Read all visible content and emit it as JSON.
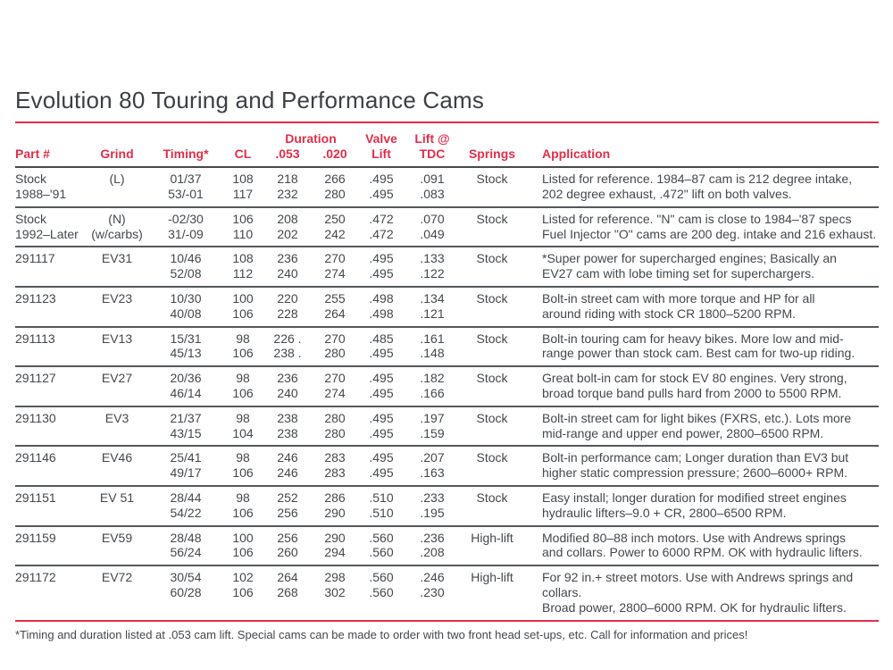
{
  "page": {
    "title": "Evolution 80 Touring and Performance Cams",
    "footnote": "*Timing and duration listed at .053 cam lift. Special cams can be made to order with two front head set-ups, etc. Call for information and prices!"
  },
  "colors": {
    "accent_red": "#e22e4a",
    "body_text": "#44484c",
    "row_rule": "#54585c"
  },
  "table": {
    "header": {
      "top": {
        "duration": "Duration",
        "valve": "Valve",
        "lift_at": "Lift @"
      },
      "labels": [
        "Part #",
        "Grind",
        "Timing*",
        "CL",
        ".053",
        ".020",
        "Lift",
        "TDC",
        "Springs",
        "Application"
      ]
    },
    "rows": [
      {
        "part": [
          "Stock",
          "1988–'91"
        ],
        "grind": [
          "(L)",
          ""
        ],
        "timing": [
          "01/37",
          "53/-01"
        ],
        "cl": [
          "108",
          "117"
        ],
        "d053": [
          "218",
          "232"
        ],
        "d020": [
          "266",
          "280"
        ],
        "valve_lift": [
          ".495",
          ".495"
        ],
        "lift_tdc": [
          ".091",
          ".083"
        ],
        "springs": "Stock",
        "application": [
          "Listed for reference. 1984–87 cam is 212 degree intake,",
          "202 degree exhaust, .472\" lift on both valves."
        ]
      },
      {
        "part": [
          "Stock",
          "1992–Later"
        ],
        "grind": [
          "(N)",
          "(w/carbs)"
        ],
        "timing": [
          "-02/30",
          "31/-09"
        ],
        "cl": [
          "106",
          "110"
        ],
        "d053": [
          "208",
          "202"
        ],
        "d020": [
          "250",
          "242"
        ],
        "valve_lift": [
          ".472",
          ".472"
        ],
        "lift_tdc": [
          ".070",
          ".049"
        ],
        "springs": "Stock",
        "application": [
          "Listed for reference. \"N\" cam is close to 1984–'87 specs",
          "Fuel Injector \"O\" cams are 200 deg. intake and 216 exhaust."
        ]
      },
      {
        "part": [
          "291117",
          ""
        ],
        "grind": [
          "EV31",
          ""
        ],
        "timing": [
          "10/46",
          "52/08"
        ],
        "cl": [
          "108",
          "112"
        ],
        "d053": [
          "236",
          "240"
        ],
        "d020": [
          "270",
          "274"
        ],
        "valve_lift": [
          ".495",
          ".495"
        ],
        "lift_tdc": [
          ".133",
          ".122"
        ],
        "springs": "Stock",
        "application": [
          "*Super power for supercharged engines; Basically an",
          "EV27 cam with lobe timing set for superchargers."
        ]
      },
      {
        "part": [
          "291123",
          ""
        ],
        "grind": [
          "EV23",
          ""
        ],
        "timing": [
          "10/30",
          "40/08"
        ],
        "cl": [
          "100",
          "106"
        ],
        "d053": [
          "220",
          "228"
        ],
        "d020": [
          "255",
          "264"
        ],
        "valve_lift": [
          ".498",
          ".498"
        ],
        "lift_tdc": [
          ".134",
          ".121"
        ],
        "springs": "Stock",
        "application": [
          "Bolt-in street cam with more torque and HP for all",
          "around riding with stock CR 1800–5200 RPM."
        ]
      },
      {
        "part": [
          "291113",
          ""
        ],
        "grind": [
          "EV13",
          ""
        ],
        "timing": [
          "15/31",
          "45/13"
        ],
        "cl": [
          "98",
          "106"
        ],
        "d053": [
          "226  .",
          "238  ."
        ],
        "d020": [
          "270",
          "280"
        ],
        "valve_lift": [
          ".485",
          ".495"
        ],
        "lift_tdc": [
          ".161",
          ".148"
        ],
        "springs": "Stock",
        "application": [
          "Bolt-in touring cam for heavy bikes. More low and mid-",
          "range power than stock cam. Best cam for two-up riding."
        ]
      },
      {
        "part": [
          "291127",
          ""
        ],
        "grind": [
          "EV27",
          ""
        ],
        "timing": [
          "20/36",
          "46/14"
        ],
        "cl": [
          "98",
          "106"
        ],
        "d053": [
          "236",
          "240"
        ],
        "d020": [
          "270",
          "274"
        ],
        "valve_lift": [
          ".495",
          ".495"
        ],
        "lift_tdc": [
          ".182",
          ".166"
        ],
        "springs": "Stock",
        "application": [
          "Great bolt-in cam for stock EV 80 engines. Very strong,",
          "broad torque band pulls hard from 2000 to 5500 RPM."
        ]
      },
      {
        "part": [
          "291130",
          ""
        ],
        "grind": [
          "EV3",
          ""
        ],
        "timing": [
          "21/37",
          "43/15"
        ],
        "cl": [
          "98",
          "104"
        ],
        "d053": [
          "238",
          "238"
        ],
        "d020": [
          "280",
          "280"
        ],
        "valve_lift": [
          ".495",
          ".495"
        ],
        "lift_tdc": [
          ".197",
          ".159"
        ],
        "springs": "Stock",
        "application": [
          "Bolt-in street cam for light bikes (FXRS, etc.). Lots more",
          "mid-range and upper end power, 2800–6500 RPM."
        ]
      },
      {
        "part": [
          "291146",
          ""
        ],
        "grind": [
          "EV46",
          ""
        ],
        "timing": [
          "25/41",
          "49/17"
        ],
        "cl": [
          "98",
          "106"
        ],
        "d053": [
          "246",
          "246"
        ],
        "d020": [
          "283",
          "283"
        ],
        "valve_lift": [
          ".495",
          ".495"
        ],
        "lift_tdc": [
          ".207",
          ".163"
        ],
        "springs": "Stock",
        "application": [
          "Bolt-in performance cam; Longer duration than EV3 but",
          "higher static compression pressure; 2600–6000+ RPM."
        ]
      },
      {
        "part": [
          "291151",
          ""
        ],
        "grind": [
          "EV 51",
          ""
        ],
        "timing": [
          "28/44",
          "54/22"
        ],
        "cl": [
          "98",
          "106"
        ],
        "d053": [
          "252",
          "256"
        ],
        "d020": [
          "286",
          "290"
        ],
        "valve_lift": [
          ".510",
          ".510"
        ],
        "lift_tdc": [
          ".233",
          ".195"
        ],
        "springs": "Stock",
        "application": [
          "Easy install; longer duration for modified street engines",
          "hydraulic lifters–9.0 + CR, 2800–6500 RPM."
        ]
      },
      {
        "part": [
          "291159",
          ""
        ],
        "grind": [
          "EV59",
          ""
        ],
        "timing": [
          "28/48",
          "56/24"
        ],
        "cl": [
          "100",
          "106"
        ],
        "d053": [
          "256",
          "260"
        ],
        "d020": [
          "290",
          "294"
        ],
        "valve_lift": [
          ".560",
          ".560"
        ],
        "lift_tdc": [
          ".236",
          ".208"
        ],
        "springs": "High-lift",
        "application": [
          "Modified 80–88 inch motors. Use with Andrews springs",
          "and collars. Power to 6000 RPM. OK with hydraulic lifters."
        ]
      },
      {
        "part": [
          "291172",
          ""
        ],
        "grind": [
          "EV72",
          ""
        ],
        "timing": [
          "30/54",
          "60/28"
        ],
        "cl": [
          "102",
          "106"
        ],
        "d053": [
          "264",
          "268"
        ],
        "d020": [
          "298",
          "302"
        ],
        "valve_lift": [
          ".560",
          ".560"
        ],
        "lift_tdc": [
          ".246",
          ".230"
        ],
        "springs": "High-lift",
        "application": [
          "For 92 in.+ street motors. Use with Andrews springs and collars.",
          "Broad power, 2800–6000 RPM. OK for hydraulic lifters."
        ]
      }
    ]
  }
}
